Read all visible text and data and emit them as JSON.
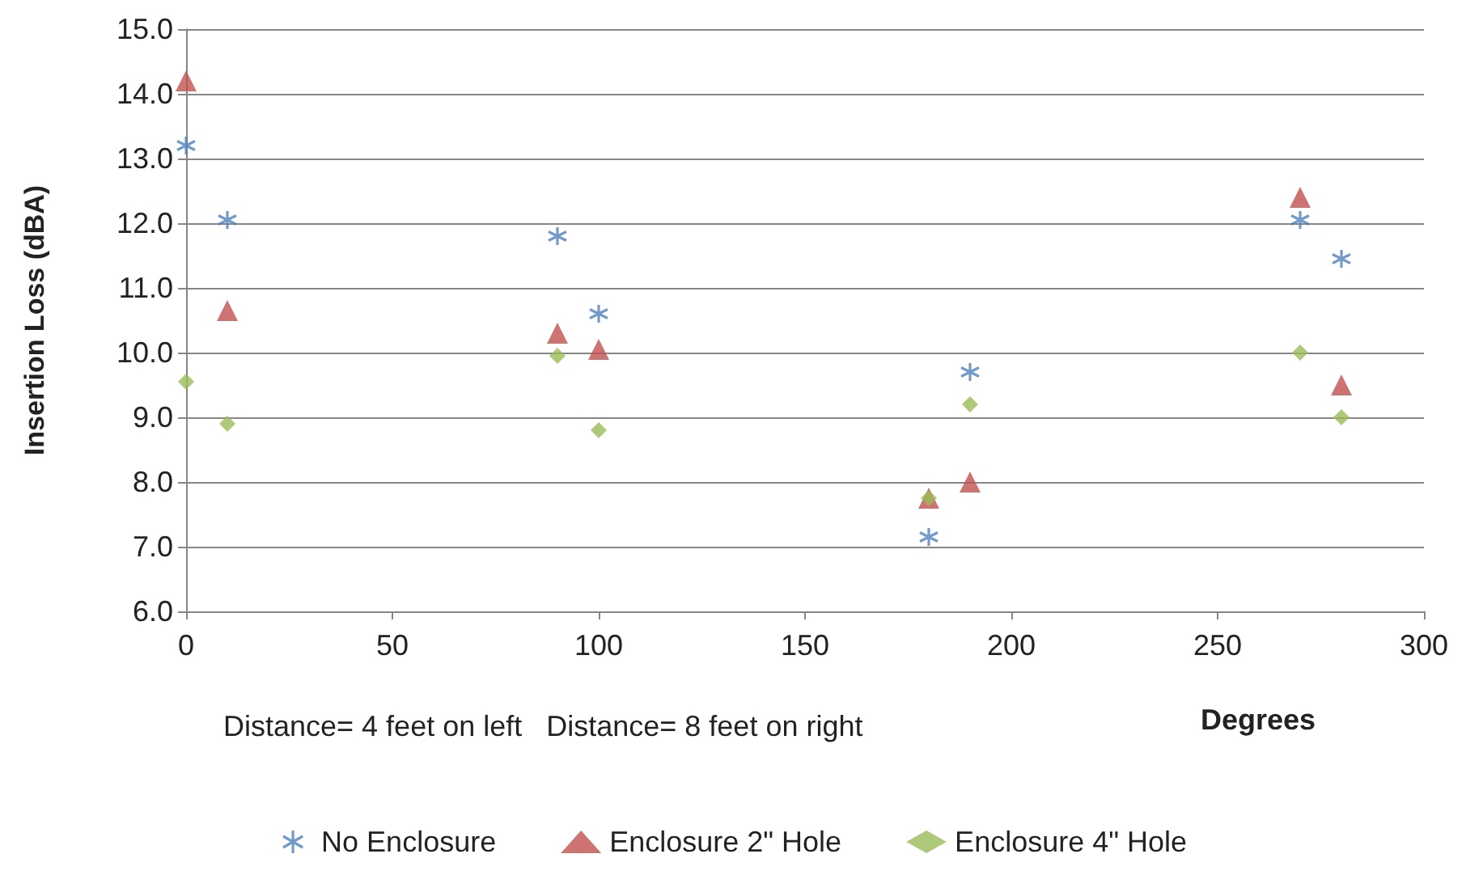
{
  "chart_data": {
    "type": "scatter",
    "xlabel": "Degrees",
    "ylabel": "Insertion Loss (dBA)",
    "annotations": [
      "Distance= 4 feet on left   Distance= 8 feet on right"
    ],
    "series": [
      {
        "name": "No Enclosure",
        "color": "#4f81bd",
        "marker": "cross",
        "x": [
          0,
          10,
          90,
          100,
          180,
          190,
          270,
          280
        ],
        "values": [
          13.2,
          12.05,
          11.8,
          10.6,
          7.15,
          9.7,
          12.05,
          11.45
        ]
      },
      {
        "name": "Enclosure 2\" Hole",
        "color": "#c0504d",
        "marker": "triangle",
        "x": [
          0,
          10,
          90,
          100,
          180,
          190,
          270,
          280
        ],
        "values": [
          14.2,
          10.65,
          10.3,
          10.05,
          7.75,
          8.0,
          12.4,
          9.5
        ]
      },
      {
        "name": "Enclosure 4\" Hole",
        "color": "#9bbb59",
        "marker": "diamond",
        "x": [
          0,
          10,
          90,
          100,
          180,
          190,
          270,
          280
        ],
        "values": [
          9.55,
          8.9,
          9.95,
          8.8,
          7.75,
          9.2,
          10.0,
          9.0
        ]
      }
    ],
    "xlim": [
      0,
      300
    ],
    "xticks": [
      0,
      50,
      100,
      150,
      200,
      250,
      300
    ],
    "ylim": [
      6,
      15
    ],
    "yticks": [
      {
        "value": 6,
        "label": "6.0"
      },
      {
        "value": 7,
        "label": "7.0"
      },
      {
        "value": 8,
        "label": "8.0"
      },
      {
        "value": 9,
        "label": "9.0"
      },
      {
        "value": 10,
        "label": "10.0"
      },
      {
        "value": 11,
        "label": "11.0"
      },
      {
        "value": 12,
        "label": "12.0"
      },
      {
        "value": 13,
        "label": "13.0"
      },
      {
        "value": 14,
        "label": "14.0"
      },
      {
        "value": 15,
        "label": "15.0"
      }
    ],
    "grid": "y",
    "legend": "bottom"
  }
}
